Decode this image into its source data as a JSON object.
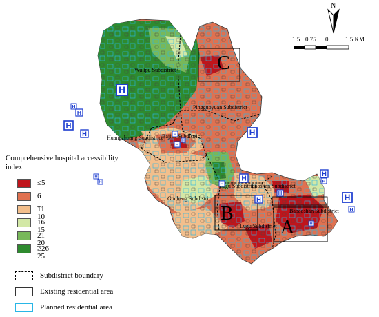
{
  "map": {
    "subdistricts": [
      {
        "key": "wulipu",
        "name": "Wulipu Subdistrict"
      },
      {
        "key": "pingguoyuan",
        "name": "Pingguoyuan Subdistrict"
      },
      {
        "key": "huangzhuang",
        "name": "Huangzhuang Subdistrict"
      },
      {
        "key": "bajiao",
        "name": "Bajiao Subdistrict"
      },
      {
        "key": "lugu",
        "name": "Lugu Subdistrict"
      },
      {
        "key": "laoshan",
        "name": "Laoshan Subdistrict"
      },
      {
        "key": "gucheng",
        "name": "Gucheng Subdistrict"
      },
      {
        "key": "babaoshan",
        "name": "Babaoshan Subdistrict"
      }
    ],
    "study_areas": [
      "A",
      "B",
      "C"
    ],
    "hospital_symbol": "H",
    "north_label": "N",
    "scale_labels": [
      "1.5",
      "0.75",
      "0",
      "1.5 KM"
    ]
  },
  "legend": {
    "title": "Comprehensive hospital accessibility index",
    "classes": [
      {
        "label": "≤5",
        "color": "#c0141b"
      },
      {
        "label": "6 – 10",
        "color": "#e07150"
      },
      {
        "label": "11 – 15",
        "color": "#f3bf8c"
      },
      {
        "label": "16 – 20",
        "color": "#d3e8a6"
      },
      {
        "label": "21 – 25",
        "color": "#78b85a"
      },
      {
        "label": "≥26",
        "color": "#2e8b2f"
      }
    ],
    "boundary_items": [
      {
        "label": "Subdistrict boundary",
        "style": "dashed",
        "color": "#000000"
      },
      {
        "label": "Existing residential area",
        "style": "solid",
        "color": "#333333"
      },
      {
        "label": "Planned residential area",
        "style": "solid",
        "color": "#29b6e6"
      }
    ]
  },
  "colors": {
    "hospital_blue": "#1f3fd0",
    "planned_cyan": "#29b6e6"
  }
}
